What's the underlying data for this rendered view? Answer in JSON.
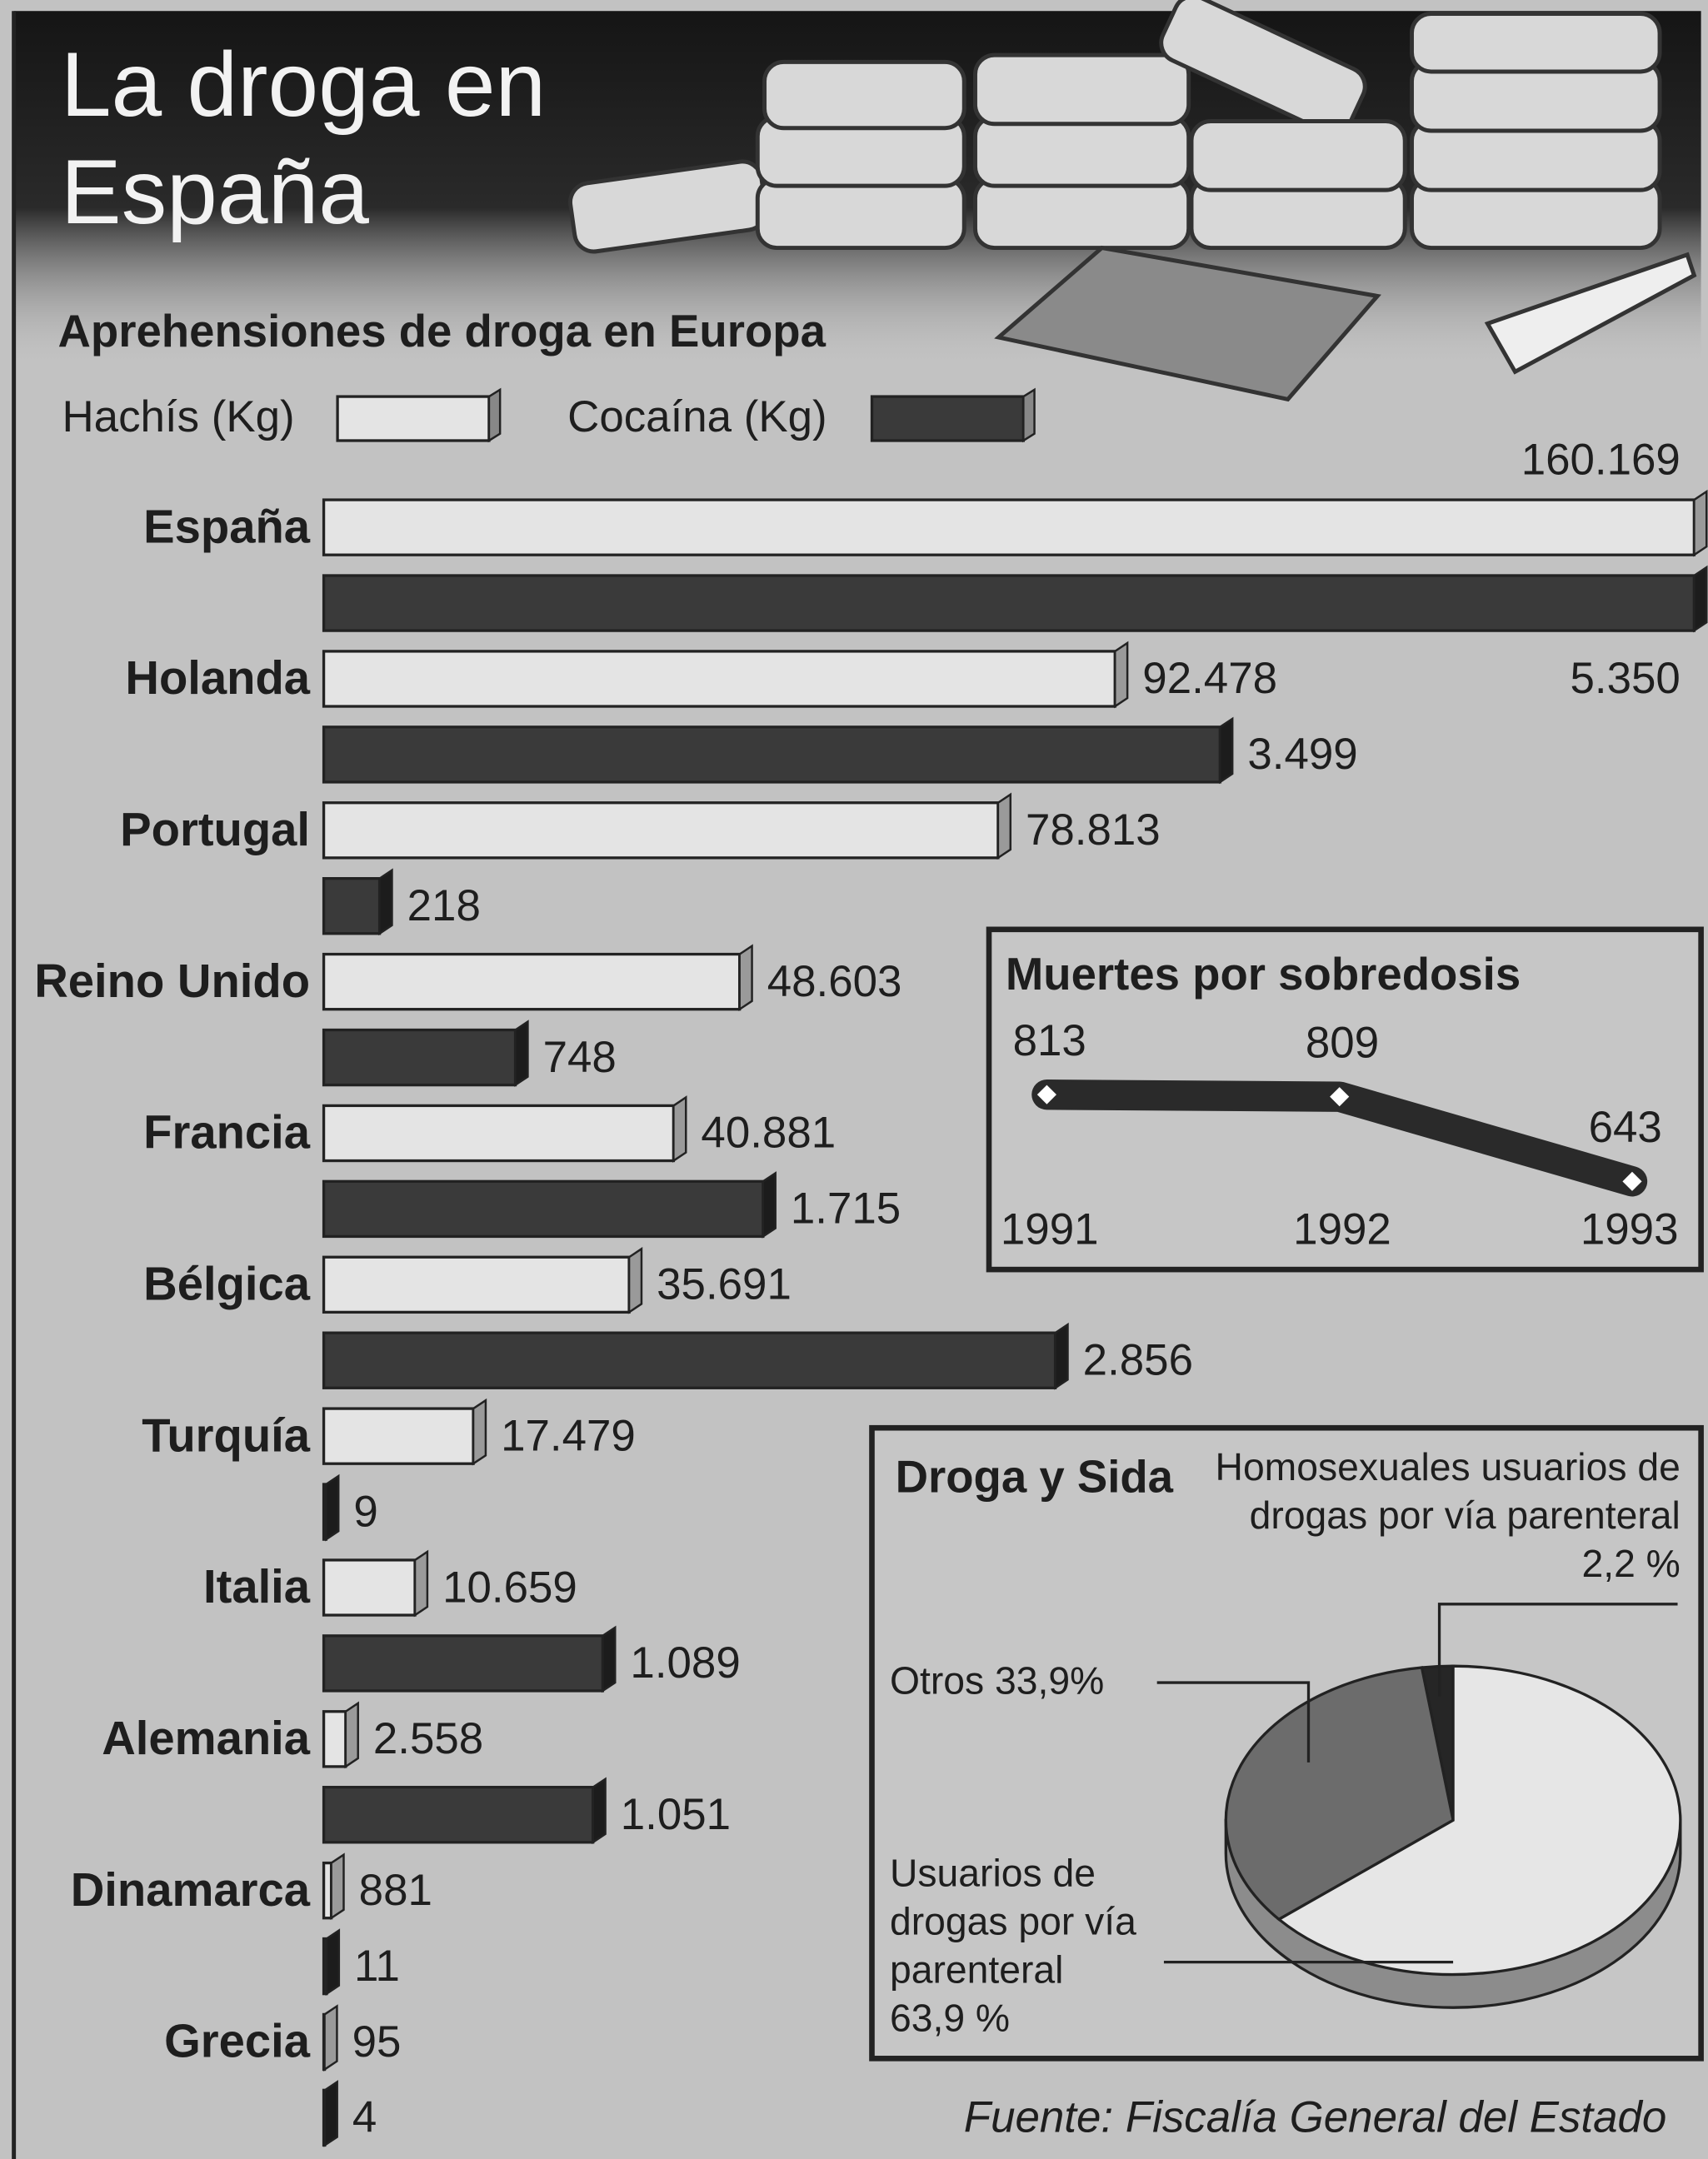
{
  "title": "La droga en España",
  "source": "Fuente: Fiscalía General del Estado",
  "chart_data": [
    {
      "type": "bar",
      "orientation": "horizontal",
      "title": "Aprehensiones de droga en Europa",
      "categories": [
        "España",
        "Holanda",
        "Portugal",
        "Reino Unido",
        "Francia",
        "Bélgica",
        "Turquía",
        "Italia",
        "Alemania",
        "Dinamarca",
        "Grecia"
      ],
      "series": [
        {
          "name": "Hachís (Kg)",
          "color": "#e4e4e4",
          "values": [
            160169,
            92478,
            78813,
            48603,
            40881,
            35691,
            17479,
            10659,
            2558,
            881,
            95
          ],
          "value_labels": [
            "160.169",
            "92.478",
            "78.813",
            "48.603",
            "40.881",
            "35.691",
            "17.479",
            "10.659",
            "2.558",
            "881",
            "95"
          ]
        },
        {
          "name": "Cocaína (Kg)",
          "color": "#3a3a3a",
          "axis": "x2",
          "values": [
            5350,
            3499,
            218,
            748,
            1715,
            2856,
            9,
            1089,
            1051,
            11,
            4
          ],
          "value_labels": [
            "5.350",
            "3.499",
            "218",
            "748",
            "1.715",
            "2.856",
            "9",
            "1.089",
            "1.051",
            "11",
            "4"
          ]
        }
      ],
      "xlim": [
        0,
        160169
      ],
      "x2lim": [
        0,
        5350
      ]
    },
    {
      "type": "line",
      "title": "Muertes por sobredosis",
      "categories": [
        "1991",
        "1992",
        "1993"
      ],
      "values": [
        813,
        809,
        643
      ],
      "color": "#2a2a2a"
    },
    {
      "type": "pie",
      "title": "Droga y Sida",
      "labels": [
        "Homosexuales usuarios de drogas por vía parenteral",
        "Otros",
        "Usuarios de drogas por vía parenteral"
      ],
      "values": [
        2.2,
        33.9,
        63.9
      ],
      "value_labels": [
        "2,2 %",
        "33,9%",
        "63,9 %"
      ],
      "colors": [
        "#262626",
        "#6c6c6c",
        "#e6e6e6"
      ]
    }
  ]
}
